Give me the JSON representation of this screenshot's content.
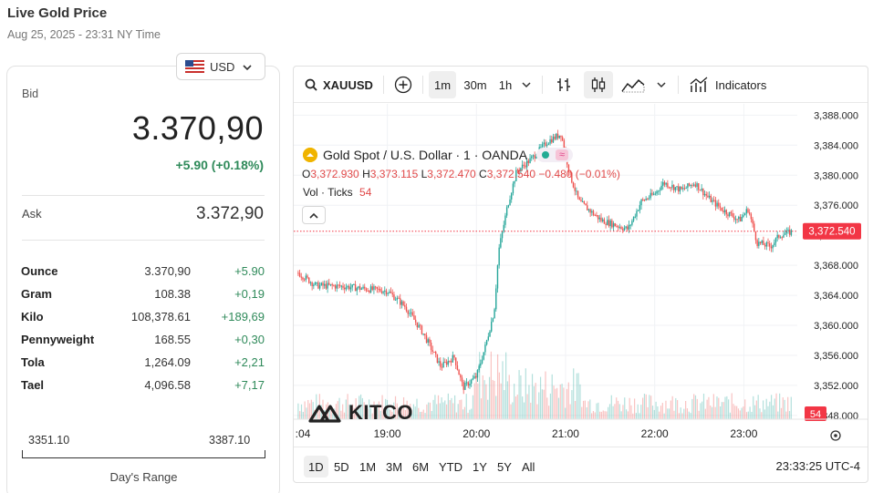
{
  "header": {
    "title": "Live Gold Price",
    "date": "Aug 25, 2025 - 23:31 NY Time"
  },
  "currency": {
    "selected": "USD",
    "flag_icon": "us-flag-icon"
  },
  "prices": {
    "bid_label": "Bid",
    "bid": "3.370,90",
    "change": "+5.90 (+0.18%)",
    "ask_label": "Ask",
    "ask": "3.372,90"
  },
  "units": [
    {
      "name": "Ounce",
      "price": "3.370,90",
      "change": "+5.90"
    },
    {
      "name": "Gram",
      "price": "108.38",
      "change": "+0,19"
    },
    {
      "name": "Kilo",
      "price": "108,378.61",
      "change": "+189,69"
    },
    {
      "name": "Pennyweight",
      "price": "168.55",
      "change": "+0,30"
    },
    {
      "name": "Tola",
      "price": "1,264.09",
      "change": "+2,21"
    },
    {
      "name": "Tael",
      "price": "4,096.58",
      "change": "+7,17"
    }
  ],
  "range": {
    "low": "3351.10",
    "high": "3387.10",
    "label": "Day's Range"
  },
  "chart_toolbar": {
    "symbol": "XAUUSD",
    "intervals": [
      "1m",
      "30m",
      "1h"
    ],
    "active_interval": "1m",
    "indicators_label": "Indicators"
  },
  "chart_legend": {
    "title": "Gold Spot / U.S. Dollar · 1 · OANDA",
    "o_label": "O",
    "o": "3,372.930",
    "h_label": "H",
    "h": "3,373.115",
    "l_label": "L",
    "l": "3,372.470",
    "c_label": "C",
    "c": "3,372.540",
    "chg": "−0.480 (−0.01%)",
    "vol_label": "Vol · Ticks",
    "vol": "54"
  },
  "watermark": "KITCO",
  "ranges": [
    "1D",
    "5D",
    "1M",
    "3M",
    "6M",
    "YTD",
    "1Y",
    "5Y",
    "All"
  ],
  "active_range": "1D",
  "clock": "23:33:25 UTC-4",
  "colors": {
    "up": "#26a69a",
    "down": "#ef5350",
    "green_text": "#2f8a5a",
    "last_price_tag": "#f23645"
  },
  "chart_data": {
    "type": "candlestick",
    "title": "Gold Spot / U.S. Dollar · 1 · OANDA",
    "y_ticks": [
      "3,388.000",
      "3,384.000",
      "3,380.000",
      "3,376.000",
      "3,372.000",
      "3,368.000",
      "3,364.000",
      "3,360.000",
      "3,356.000",
      "3,352.000",
      "3,348.000"
    ],
    "x_ticks": [
      ":04",
      "19:00",
      "20:00",
      "21:00",
      "22:00",
      "23:00"
    ],
    "last_price": "3,372.540",
    "last_volume": "54",
    "ylim": [
      3347.5,
      3389.5
    ],
    "price_path": [
      [
        18.0,
        3367.0
      ],
      [
        18.2,
        3365.3
      ],
      [
        18.5,
        3365.2
      ],
      [
        18.8,
        3364.8
      ],
      [
        19.0,
        3364.6
      ],
      [
        19.2,
        3362.5
      ],
      [
        19.4,
        3359.0
      ],
      [
        19.6,
        3354.5
      ],
      [
        19.75,
        3355.8
      ],
      [
        19.85,
        3351.7
      ],
      [
        20.0,
        3353.2
      ],
      [
        20.1,
        3357.2
      ],
      [
        20.2,
        3362.0
      ],
      [
        20.25,
        3370.0
      ],
      [
        20.35,
        3376.0
      ],
      [
        20.45,
        3380.5
      ],
      [
        20.6,
        3382.0
      ],
      [
        20.8,
        3384.5
      ],
      [
        20.95,
        3385.5
      ],
      [
        21.05,
        3380.0
      ],
      [
        21.15,
        3376.5
      ],
      [
        21.4,
        3374.0
      ],
      [
        21.6,
        3373.2
      ],
      [
        21.7,
        3372.8
      ],
      [
        21.85,
        3376.5
      ],
      [
        22.0,
        3377.5
      ],
      [
        22.1,
        3379.0
      ],
      [
        22.3,
        3378.0
      ],
      [
        22.45,
        3379.0
      ],
      [
        22.6,
        3377.0
      ],
      [
        22.75,
        3375.5
      ],
      [
        22.95,
        3374.0
      ],
      [
        23.05,
        3375.5
      ],
      [
        23.15,
        3371.0
      ],
      [
        23.3,
        3370.5
      ],
      [
        23.4,
        3372.0
      ],
      [
        23.55,
        3372.5
      ]
    ],
    "x_range": [
      17.95,
      23.6
    ],
    "volume_note": "volume bars shown faintly in teal/red at bottom"
  }
}
